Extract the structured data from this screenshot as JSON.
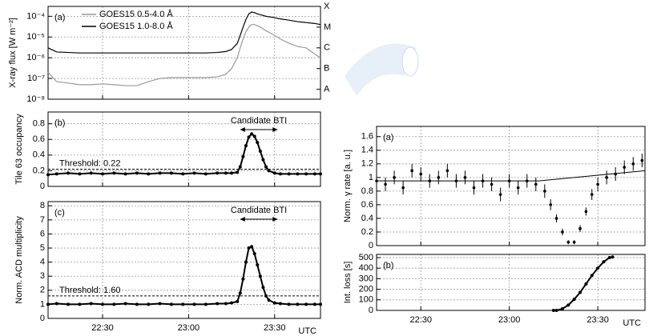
{
  "chart_data": [
    {
      "type": "line",
      "panel_label": "(a)",
      "ylabel": "X-ray flux [W m⁻²]",
      "log_scale": true,
      "grid": true,
      "show_xtick_labels": false,
      "xlim": [
        "22:11",
        "23:46"
      ],
      "xticks": [
        "22:30",
        "23:00",
        "23:30"
      ],
      "ylim": [
        1e-08,
        0.0003
      ],
      "yticks": [
        {
          "value": 1e-08,
          "label": "10⁻⁸"
        },
        {
          "value": 1e-07,
          "label": "10⁻⁷"
        },
        {
          "value": 1e-06,
          "label": "10⁻⁶"
        },
        {
          "value": 1e-05,
          "label": "10⁻⁵"
        },
        {
          "value": 0.0001,
          "label": "10⁻⁴"
        }
      ],
      "y2lim": [
        1e-08,
        0.0003
      ],
      "y2ticks": [
        {
          "value": 3e-08,
          "label": "A"
        },
        {
          "value": 3e-07,
          "label": "B"
        },
        {
          "value": 3e-06,
          "label": "C"
        },
        {
          "value": 3e-05,
          "label": "M"
        },
        {
          "value": 0.0003,
          "label": "X"
        }
      ],
      "x": [
        "22:11",
        "22:14",
        "22:18",
        "22:22",
        "22:26",
        "22:30",
        "22:34",
        "22:38",
        "22:42",
        "22:46",
        "22:50",
        "22:54",
        "22:58",
        "23:02",
        "23:06",
        "23:10",
        "23:13",
        "23:15",
        "23:17",
        "23:18",
        "23:19",
        "23:20",
        "23:21",
        "23:22",
        "23:23",
        "23:24",
        "23:25",
        "23:26",
        "23:27",
        "23:28",
        "23:30",
        "23:32",
        "23:35",
        "23:38",
        "23:41",
        "23:44",
        "23:46"
      ],
      "series": [
        {
          "name": "GOES15 0.5-4.0 Å",
          "color": "#999999",
          "values": [
            2e-07,
            7e-08,
            6e-08,
            5e-08,
            5e-08,
            5.5e-08,
            5e-08,
            4.5e-08,
            4.5e-08,
            7e-08,
            1e-07,
            1.1e-07,
            1.1e-07,
            1.1e-07,
            1.1e-07,
            1.2e-07,
            1.6e-07,
            3e-07,
            1e-06,
            3e-06,
            8e-06,
            1.8e-05,
            3e-05,
            4e-05,
            4e-05,
            3.5e-05,
            3e-05,
            2.5e-05,
            2e-05,
            1.7e-05,
            1.2e-05,
            8e-06,
            5e-06,
            3.5e-06,
            3e-06,
            1.5e-06,
            1e-06
          ]
        },
        {
          "name": "GOES15 1.0-8.0 Å",
          "color": "#000000",
          "values": [
            3e-06,
            1.9e-06,
            1.8e-06,
            1.7e-06,
            1.7e-06,
            1.7e-06,
            1.7e-06,
            1.7e-06,
            1.7e-06,
            1.7e-06,
            1.7e-06,
            1.7e-06,
            1.7e-06,
            1.7e-06,
            1.7e-06,
            1.8e-06,
            2e-06,
            2.5e-06,
            5e-06,
            1.2e-05,
            3e-05,
            7e-05,
            0.00013,
            0.00016,
            0.00015,
            0.00013,
            0.00012,
            0.00011,
            0.0001,
            9.5e-05,
            8.5e-05,
            7.5e-05,
            6.5e-05,
            5.5e-05,
            5e-05,
            4.5e-05,
            4e-05
          ]
        }
      ]
    },
    {
      "type": "scatter",
      "panel_label": "(b)",
      "ylabel": "Tile 63 occupancy",
      "grid": true,
      "show_xtick_labels": false,
      "color": "#000000",
      "xlim": [
        "22:11",
        "23:46"
      ],
      "xticks": [
        "22:30",
        "23:00",
        "23:30"
      ],
      "ylim": [
        0,
        0.95
      ],
      "yticks": [
        0,
        0.2,
        0.4,
        0.6,
        0.8
      ],
      "threshold": 0.22,
      "threshold_label": "Threshold: 0.22",
      "annotation": {
        "text": "Candidate BTI",
        "x": [
          "23:18",
          "23:31"
        ]
      },
      "x": [
        "22:11",
        "22:14",
        "22:18",
        "22:22",
        "22:26",
        "22:30",
        "22:34",
        "22:38",
        "22:42",
        "22:46",
        "22:50",
        "22:54",
        "22:58",
        "23:02",
        "23:06",
        "23:10",
        "23:13",
        "23:15",
        "23:17",
        "23:18",
        "23:19",
        "23:20",
        "23:21",
        "23:22",
        "23:23",
        "23:24",
        "23:25",
        "23:26",
        "23:27",
        "23:28",
        "23:30",
        "23:32",
        "23:35",
        "23:38",
        "23:41",
        "23:44",
        "23:46"
      ],
      "values": [
        0.15,
        0.16,
        0.17,
        0.16,
        0.17,
        0.16,
        0.17,
        0.16,
        0.17,
        0.16,
        0.17,
        0.17,
        0.16,
        0.17,
        0.16,
        0.17,
        0.17,
        0.17,
        0.18,
        0.25,
        0.38,
        0.52,
        0.63,
        0.67,
        0.64,
        0.56,
        0.45,
        0.34,
        0.25,
        0.2,
        0.17,
        0.16,
        0.16,
        0.16,
        0.16,
        0.16,
        0.16
      ]
    },
    {
      "type": "scatter",
      "panel_label": "(c)",
      "ylabel": "Norm. ACD multiplicity",
      "xlabel": "UTC",
      "grid": true,
      "show_xtick_labels": true,
      "color": "#000000",
      "xlim": [
        "22:11",
        "23:46"
      ],
      "xticks": [
        "22:30",
        "23:00",
        "23:30"
      ],
      "ylim": [
        0,
        8.3
      ],
      "yticks": [
        0,
        1,
        2,
        3,
        4,
        5,
        6,
        7,
        8
      ],
      "threshold": 1.6,
      "threshold_label": "Threshold: 1.60",
      "annotation": {
        "text": "Candidate BTI",
        "x": [
          "23:18",
          "23:31"
        ]
      },
      "x": [
        "22:11",
        "22:14",
        "22:18",
        "22:22",
        "22:26",
        "22:30",
        "22:34",
        "22:38",
        "22:42",
        "22:46",
        "22:50",
        "22:54",
        "22:58",
        "23:02",
        "23:06",
        "23:10",
        "23:13",
        "23:15",
        "23:17",
        "23:18",
        "23:19",
        "23:20",
        "23:21",
        "23:22",
        "23:23",
        "23:24",
        "23:25",
        "23:26",
        "23:27",
        "23:28",
        "23:30",
        "23:32",
        "23:35",
        "23:38",
        "23:41",
        "23:44",
        "23:46"
      ],
      "values": [
        1.0,
        1.05,
        1.0,
        1.0,
        1.05,
        1.0,
        1.0,
        1.05,
        1.0,
        1.0,
        1.05,
        1.0,
        1.0,
        1.0,
        1.0,
        1.05,
        1.05,
        1.1,
        1.2,
        1.8,
        2.8,
        4.0,
        5.0,
        5.1,
        4.6,
        3.8,
        3.0,
        2.2,
        1.6,
        1.3,
        1.1,
        1.05,
        1.0,
        1.0,
        1.0,
        1.0,
        1.0
      ]
    },
    {
      "type": "errorbar",
      "panel_label": "(a)",
      "ylabel": "Norm. γ rate [a. u.]",
      "grid": true,
      "show_xtick_labels": false,
      "color": "#000000",
      "xlim": [
        "22:15",
        "23:46"
      ],
      "xticks": [
        "22:30",
        "23:00",
        "23:30"
      ],
      "ylim": [
        0,
        1.75
      ],
      "yticks": [
        0,
        0.2,
        0.4,
        0.6,
        0.8,
        1,
        1.2,
        1.4,
        1.6
      ],
      "x": [
        "22:15",
        "22:18",
        "22:21",
        "22:24",
        "22:27",
        "22:30",
        "22:33",
        "22:36",
        "22:39",
        "22:42",
        "22:45",
        "22:48",
        "22:51",
        "22:54",
        "22:57",
        "23:00",
        "23:03",
        "23:06",
        "23:09",
        "23:12",
        "23:14",
        "23:16",
        "23:18",
        "23:20",
        "23:22",
        "23:24",
        "23:26",
        "23:28",
        "23:30",
        "23:33",
        "23:36",
        "23:39",
        "23:42",
        "23:45"
      ],
      "values": [
        0.95,
        0.9,
        1.0,
        0.85,
        1.1,
        1.05,
        0.95,
        1.0,
        1.1,
        0.95,
        1.0,
        0.85,
        0.95,
        0.9,
        0.75,
        0.95,
        0.85,
        0.95,
        0.9,
        0.8,
        0.6,
        0.4,
        0.2,
        0.05,
        0.05,
        0.25,
        0.5,
        0.75,
        0.9,
        1.0,
        1.05,
        1.15,
        1.2,
        1.25
      ],
      "errors": [
        0.1,
        0.1,
        0.1,
        0.1,
        0.1,
        0.1,
        0.1,
        0.1,
        0.1,
        0.1,
        0.1,
        0.1,
        0.1,
        0.1,
        0.1,
        0.1,
        0.1,
        0.1,
        0.1,
        0.1,
        0.08,
        0.06,
        0.05,
        0.03,
        0.03,
        0.05,
        0.06,
        0.08,
        0.1,
        0.1,
        0.1,
        0.1,
        0.1,
        0.1
      ],
      "fit": {
        "x": [
          "22:15",
          "23:10",
          "23:46"
        ],
        "values": [
          0.95,
          0.95,
          1.1
        ]
      }
    },
    {
      "type": "scatter",
      "panel_label": "(b)",
      "ylabel": "Int. loss [s]",
      "xlabel": "UTC",
      "grid": true,
      "show_xtick_labels": true,
      "color": "#000000",
      "xlim": [
        "22:15",
        "23:46"
      ],
      "xticks": [
        "22:30",
        "23:00",
        "23:30"
      ],
      "ylim": [
        0,
        530
      ],
      "yticks": [
        0,
        100,
        200,
        300,
        400,
        500
      ],
      "x": [
        "23:15",
        "23:16",
        "23:18",
        "23:20",
        "23:22",
        "23:24",
        "23:26",
        "23:28",
        "23:30",
        "23:32",
        "23:34",
        "23:35"
      ],
      "values": [
        0,
        0,
        15,
        50,
        105,
        170,
        250,
        330,
        400,
        460,
        500,
        505
      ]
    }
  ]
}
